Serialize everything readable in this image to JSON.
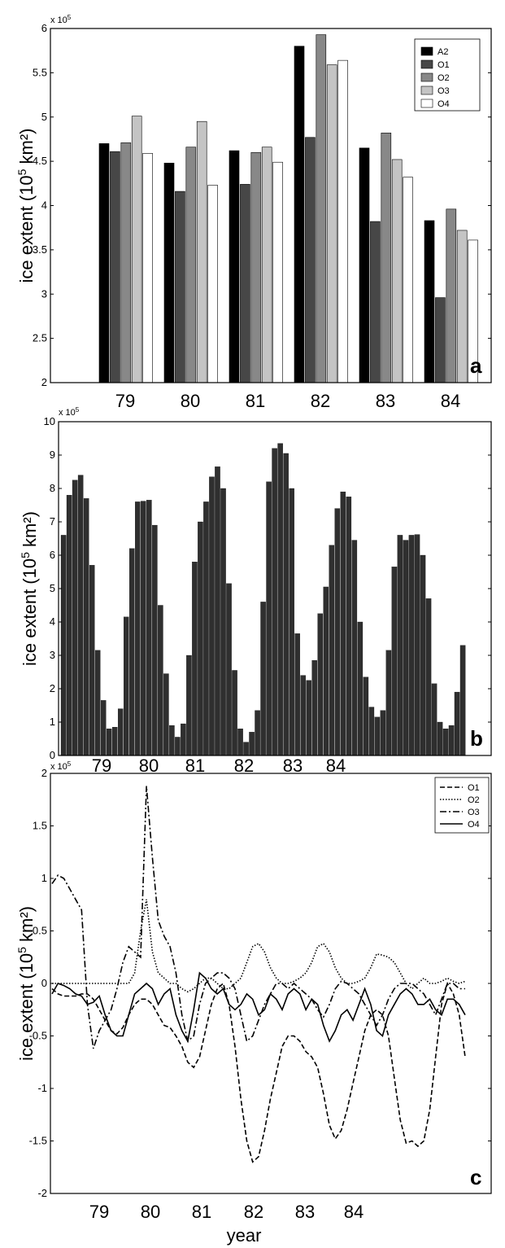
{
  "chart_data": [
    {
      "type": "bar",
      "panel_label": "a",
      "multiplier": "x 10",
      "multiplier_exp": "5",
      "ylabel": "ice extent (10",
      "ylabel_exp": "5",
      "ylabel_unit": " km²)",
      "ylim": [
        2,
        6
      ],
      "yticks": [
        "2",
        "2.5",
        "3",
        "3.5",
        "4",
        "4.5",
        "5",
        "5.5",
        "6"
      ],
      "categories": [
        "79",
        "80",
        "81",
        "82",
        "83",
        "84"
      ],
      "legend_position": "top-right",
      "series": [
        {
          "name": "A2",
          "color": "#000000",
          "values": [
            4.7,
            4.48,
            4.62,
            5.8,
            4.65,
            3.83
          ]
        },
        {
          "name": "O1",
          "color": "#474747",
          "values": [
            4.61,
            4.16,
            4.24,
            4.77,
            3.82,
            2.96
          ]
        },
        {
          "name": "O2",
          "color": "#888888",
          "values": [
            4.71,
            4.66,
            4.6,
            5.93,
            4.82,
            3.96
          ]
        },
        {
          "name": "O3",
          "color": "#c4c4c4",
          "values": [
            5.01,
            4.95,
            4.66,
            5.59,
            4.52,
            3.72
          ]
        },
        {
          "name": "O4",
          "color": "#ffffff",
          "values": [
            4.59,
            4.23,
            4.49,
            5.64,
            4.32,
            3.61
          ]
        }
      ]
    },
    {
      "type": "bar",
      "panel_label": "b",
      "multiplier": "x 10",
      "multiplier_exp": "5",
      "ylabel": "ice extent (10",
      "ylabel_exp": "5",
      "ylabel_unit": " km²)",
      "ylim": [
        0,
        10
      ],
      "yticks": [
        "0",
        "1",
        "2",
        "3",
        "4",
        "5",
        "6",
        "7",
        "8",
        "9",
        "10"
      ],
      "year_labels": [
        "79",
        "80",
        "81",
        "82",
        "83",
        "84"
      ],
      "bar_color": "#2f2f2f",
      "values": [
        6.6,
        7.8,
        8.25,
        8.4,
        7.7,
        5.7,
        3.15,
        1.65,
        0.8,
        0.85,
        1.4,
        4.15,
        6.2,
        7.6,
        7.62,
        7.65,
        6.9,
        4.5,
        2.45,
        0.9,
        0.55,
        0.95,
        3.0,
        5.8,
        7.0,
        7.6,
        8.35,
        8.65,
        8.0,
        5.15,
        2.55,
        0.8,
        0.4,
        0.7,
        1.35,
        4.6,
        8.2,
        9.2,
        9.35,
        9.05,
        8.0,
        3.65,
        2.4,
        2.25,
        2.85,
        4.25,
        5.05,
        6.3,
        7.4,
        7.9,
        7.75,
        6.45,
        4.0,
        2.35,
        1.45,
        1.15,
        1.35,
        3.15,
        5.65,
        6.6,
        6.45,
        6.6,
        6.62,
        6.0,
        4.7,
        2.15,
        1.0,
        0.8,
        0.9,
        1.9,
        3.3
      ]
    },
    {
      "type": "line",
      "panel_label": "c",
      "multiplier": "x 10",
      "multiplier_exp": "5",
      "ylabel": "ice extent (10",
      "ylabel_exp": "5",
      "ylabel_unit": " km²)",
      "xlabel": "year",
      "ylim": [
        -2,
        2
      ],
      "yticks": [
        "-2",
        "-1.5",
        "-1",
        "-0.5",
        "0",
        "0.5",
        "1",
        "1.5",
        "2"
      ],
      "year_labels": [
        "79",
        "80",
        "81",
        "82",
        "83",
        "84"
      ],
      "legend_position": "top-right",
      "series": [
        {
          "name": "O1",
          "dash": "6,3",
          "values": [
            -0.05,
            -0.1,
            -0.12,
            -0.12,
            -0.12,
            -0.1,
            -0.1,
            -0.15,
            -0.25,
            -0.35,
            -0.45,
            -0.48,
            -0.42,
            -0.3,
            -0.2,
            -0.15,
            -0.15,
            -0.2,
            -0.3,
            -0.4,
            -0.42,
            -0.5,
            -0.6,
            -0.75,
            -0.8,
            -0.7,
            -0.45,
            -0.2,
            -0.05,
            0.0,
            -0.2,
            -0.6,
            -1.1,
            -1.5,
            -1.7,
            -1.65,
            -1.4,
            -1.1,
            -0.85,
            -0.6,
            -0.5,
            -0.5,
            -0.55,
            -0.65,
            -0.7,
            -0.8,
            -1.05,
            -1.35,
            -1.48,
            -1.4,
            -1.2,
            -0.95,
            -0.7,
            -0.45,
            -0.3,
            -0.25,
            -0.3,
            -0.5,
            -0.9,
            -1.3,
            -1.52,
            -1.5,
            -1.55,
            -1.5,
            -1.2,
            -0.7,
            -0.2,
            0.0,
            -0.1,
            -0.3,
            -0.7
          ]
        },
        {
          "name": "O2",
          "dash": "1.5,2",
          "values": [
            0.0,
            0.0,
            0.0,
            0.0,
            0.0,
            0.0,
            0.0,
            0.0,
            0.0,
            0.0,
            0.0,
            0.0,
            0.0,
            0.0,
            0.1,
            0.5,
            0.8,
            0.3,
            0.1,
            0.05,
            0.0,
            0.0,
            -0.05,
            -0.08,
            -0.05,
            0.0,
            0.05,
            0.05,
            0.0,
            -0.05,
            -0.05,
            0.0,
            0.05,
            0.2,
            0.35,
            0.38,
            0.3,
            0.15,
            0.05,
            0.0,
            0.0,
            0.02,
            0.05,
            0.1,
            0.2,
            0.35,
            0.38,
            0.3,
            0.15,
            0.05,
            0.0,
            0.0,
            0.02,
            0.05,
            0.15,
            0.28,
            0.27,
            0.25,
            0.2,
            0.1,
            0.0,
            -0.05,
            0.0,
            0.05,
            0.0,
            0.0,
            0.02,
            0.05,
            0.02,
            0.0,
            0.02
          ]
        },
        {
          "name": "O3",
          "dash": "8,3,2,3",
          "values": [
            0.95,
            1.03,
            1.0,
            0.9,
            0.8,
            0.7,
            -0.2,
            -0.62,
            -0.45,
            -0.35,
            -0.25,
            -0.05,
            0.2,
            0.35,
            0.3,
            0.25,
            1.88,
            1.2,
            0.6,
            0.45,
            0.35,
            0.1,
            -0.3,
            -0.55,
            -0.5,
            -0.2,
            0.0,
            0.05,
            0.1,
            0.1,
            0.05,
            -0.05,
            -0.3,
            -0.55,
            -0.5,
            -0.35,
            -0.2,
            -0.1,
            0.0,
            0.0,
            -0.05,
            0.0,
            -0.05,
            -0.1,
            -0.15,
            -0.25,
            -0.32,
            -0.2,
            -0.05,
            0.02,
            0.0,
            -0.05,
            -0.1,
            -0.2,
            -0.3,
            -0.4,
            -0.3,
            -0.15,
            -0.05,
            0.0,
            0.0,
            0.0,
            -0.05,
            -0.1,
            -0.2,
            -0.3,
            -0.15,
            0.0,
            0.0,
            -0.05,
            -0.05
          ]
        },
        {
          "name": "O4",
          "dash": "",
          "values": [
            -0.1,
            0.0,
            -0.02,
            -0.05,
            -0.1,
            -0.12,
            -0.2,
            -0.18,
            -0.12,
            -0.3,
            -0.45,
            -0.5,
            -0.5,
            -0.3,
            -0.1,
            -0.05,
            0.0,
            -0.05,
            -0.2,
            -0.1,
            -0.05,
            -0.3,
            -0.45,
            -0.55,
            -0.25,
            0.1,
            0.05,
            -0.05,
            -0.1,
            -0.05,
            -0.2,
            -0.25,
            -0.2,
            -0.1,
            -0.15,
            -0.3,
            -0.25,
            -0.1,
            -0.15,
            -0.25,
            -0.1,
            -0.05,
            -0.1,
            -0.25,
            -0.15,
            -0.2,
            -0.4,
            -0.55,
            -0.45,
            -0.3,
            -0.25,
            -0.35,
            -0.2,
            -0.05,
            -0.2,
            -0.45,
            -0.5,
            -0.3,
            -0.2,
            -0.1,
            -0.05,
            -0.1,
            -0.2,
            -0.2,
            -0.15,
            -0.25,
            -0.3,
            -0.15,
            -0.15,
            -0.2,
            -0.3
          ]
        }
      ]
    }
  ]
}
